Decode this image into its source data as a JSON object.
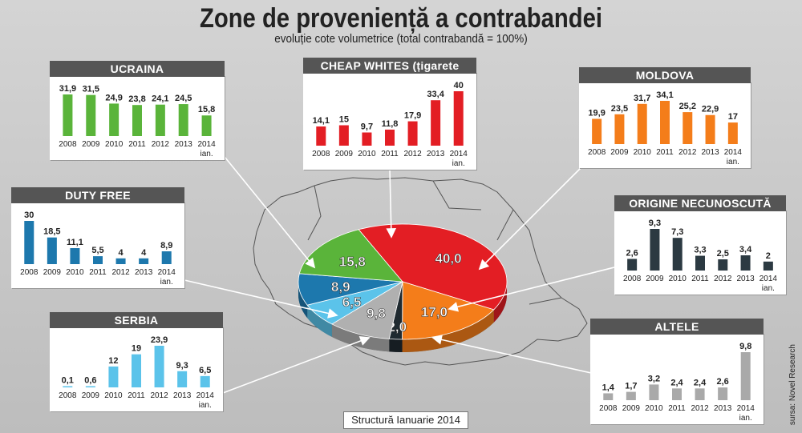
{
  "title": "Zone de proveniență a contrabandei",
  "subtitle": "evoluție cote volumetrice (total contrabandă = 100%)",
  "source": "sursa: Novel Research",
  "structure_label": "Structură Ianuarie 2014",
  "chart_data": [
    {
      "type": "pie",
      "id": "structura",
      "categories": [
        "CHEAP WHITES (țigarete ieftine)",
        "MOLDOVA",
        "ORIGINE NECUNOSCUTĂ",
        "ALTELE",
        "SERBIA",
        "DUTY FREE",
        "UCRAINA"
      ],
      "values": [
        40.0,
        17.0,
        2.0,
        9.8,
        6.5,
        8.9,
        15.8
      ],
      "labels": [
        "40,0",
        "17,0",
        "2,0",
        "9,8",
        "6,5",
        "8,9",
        "15,8"
      ],
      "colors": [
        "#e31e24",
        "#f47d1a",
        "#1f2a30",
        "#b0b0b0",
        "#5bc3ea",
        "#1d78ad",
        "#5ab43a"
      ]
    },
    {
      "type": "bar",
      "id": "ucraina",
      "title": "UCRAINA",
      "color": "#5ab43a",
      "categories": [
        "2008",
        "2009",
        "2010",
        "2011",
        "2012",
        "2013",
        "2014"
      ],
      "sub_last": "ian.",
      "values": [
        31.9,
        31.5,
        24.9,
        23.8,
        24.1,
        24.5,
        15.8
      ],
      "labels": [
        "31,9",
        "31,5",
        "24,9",
        "23,8",
        "24,1",
        "24,5",
        "15,8"
      ]
    },
    {
      "type": "bar",
      "id": "cheap",
      "title": "CHEAP WHITES (țigarete ieftine)",
      "color": "#e31e24",
      "categories": [
        "2008",
        "2009",
        "2010",
        "2011",
        "2012",
        "2013",
        "2014"
      ],
      "sub_last": "ian.",
      "values": [
        14.1,
        15,
        9.7,
        11.8,
        17.9,
        33.4,
        40
      ],
      "labels": [
        "14,1",
        "15",
        "9,7",
        "11,8",
        "17,9",
        "33,4",
        "40"
      ]
    },
    {
      "type": "bar",
      "id": "moldova",
      "title": "MOLDOVA",
      "color": "#f47d1a",
      "categories": [
        "2008",
        "2009",
        "2010",
        "2011",
        "2012",
        "2013",
        "2014"
      ],
      "sub_last": "ian.",
      "values": [
        19.9,
        23.5,
        31.7,
        34.1,
        25.2,
        22.9,
        17
      ],
      "labels": [
        "19,9",
        "23,5",
        "31,7",
        "34,1",
        "25,2",
        "22,9",
        "17"
      ]
    },
    {
      "type": "bar",
      "id": "dutyfree",
      "title": "DUTY FREE",
      "color": "#1d78ad",
      "categories": [
        "2008",
        "2009",
        "2010",
        "2011",
        "2012",
        "2013",
        "2014"
      ],
      "sub_last": "ian.",
      "values": [
        30,
        18.5,
        11.1,
        5.5,
        4,
        4,
        8.9
      ],
      "labels": [
        "30",
        "18,5",
        "11,1",
        "5,5",
        "4",
        "4",
        "8,9"
      ]
    },
    {
      "type": "bar",
      "id": "origine",
      "title": "ORIGINE NECUNOSCUTĂ",
      "color": "#2c3a42",
      "categories": [
        "2008",
        "2009",
        "2010",
        "2011",
        "2012",
        "2013",
        "2014"
      ],
      "sub_last": "ian.",
      "values": [
        2.6,
        9.3,
        7.3,
        3.3,
        2.5,
        3.4,
        2
      ],
      "labels": [
        "2,6",
        "9,3",
        "7,3",
        "3,3",
        "2,5",
        "3,4",
        "2"
      ]
    },
    {
      "type": "bar",
      "id": "serbia",
      "title": "SERBIA",
      "color": "#5bc3ea",
      "categories": [
        "2008",
        "2009",
        "2010",
        "2011",
        "2012",
        "2013",
        "2014"
      ],
      "sub_last": "ian.",
      "values": [
        0.1,
        0.6,
        12,
        19,
        23.9,
        9.3,
        6.5
      ],
      "labels": [
        "0,1",
        "0,6",
        "12",
        "19",
        "23,9",
        "9,3",
        "6,5"
      ]
    },
    {
      "type": "bar",
      "id": "altele",
      "title": "ALTELE",
      "color": "#a9a9a9",
      "categories": [
        "2008",
        "2009",
        "2010",
        "2011",
        "2012",
        "2013",
        "2014"
      ],
      "sub_last": "ian.",
      "values": [
        1.4,
        1.7,
        3.2,
        2.4,
        2.4,
        2.6,
        9.8
      ],
      "labels": [
        "1,4",
        "1,7",
        "3,2",
        "2,4",
        "2,4",
        "2,6",
        "9,8"
      ]
    }
  ]
}
